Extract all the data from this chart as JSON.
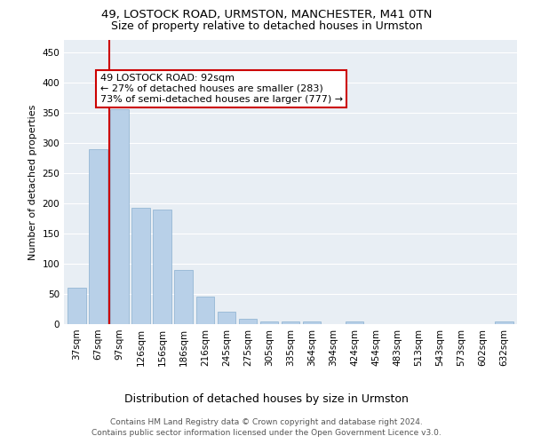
{
  "title_line1": "49, LOSTOCK ROAD, URMSTON, MANCHESTER, M41 0TN",
  "title_line2": "Size of property relative to detached houses in Urmston",
  "xlabel": "Distribution of detached houses by size in Urmston",
  "ylabel": "Number of detached properties",
  "categories": [
    "37sqm",
    "67sqm",
    "97sqm",
    "126sqm",
    "156sqm",
    "186sqm",
    "216sqm",
    "245sqm",
    "275sqm",
    "305sqm",
    "335sqm",
    "364sqm",
    "394sqm",
    "424sqm",
    "454sqm",
    "483sqm",
    "513sqm",
    "543sqm",
    "573sqm",
    "602sqm",
    "632sqm"
  ],
  "values": [
    60,
    290,
    355,
    192,
    190,
    90,
    46,
    21,
    9,
    5,
    4,
    4,
    0,
    4,
    0,
    0,
    0,
    0,
    0,
    0,
    4
  ],
  "bar_color": "#b8d0e8",
  "bar_edge_color": "#8ab0d0",
  "vline_color": "#cc0000",
  "annotation_text": "49 LOSTOCK ROAD: 92sqm\n← 27% of detached houses are smaller (283)\n73% of semi-detached houses are larger (777) →",
  "annotation_box_color": "#ffffff",
  "annotation_box_edge_color": "#cc0000",
  "ylim": [
    0,
    470
  ],
  "yticks": [
    0,
    50,
    100,
    150,
    200,
    250,
    300,
    350,
    400,
    450
  ],
  "footer_line1": "Contains HM Land Registry data © Crown copyright and database right 2024.",
  "footer_line2": "Contains public sector information licensed under the Open Government Licence v3.0.",
  "plot_bg_color": "#e8eef4",
  "title_fontsize": 9.5,
  "subtitle_fontsize": 9,
  "axis_label_fontsize": 8,
  "tick_fontsize": 7.5,
  "footer_fontsize": 6.5,
  "annotation_fontsize": 8
}
